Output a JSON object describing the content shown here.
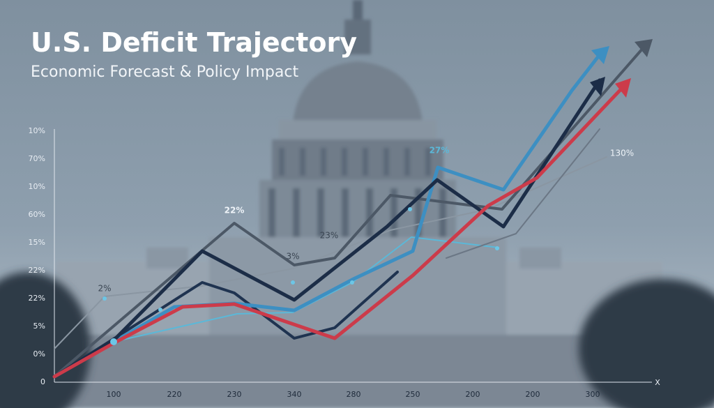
{
  "header": {
    "title": "U.S. Deficit Trajectory",
    "subtitle": "Economic Forecast & Policy Impact"
  },
  "axis": {
    "y_labels": [
      "10%",
      "70%",
      "10%",
      "60%",
      "15%",
      "22%",
      "22%",
      "5%",
      "0%",
      "0"
    ],
    "x_labels": [
      "100",
      "220",
      "230",
      "340",
      "280",
      "250",
      "200",
      "200",
      "300"
    ],
    "x_end": "X"
  },
  "annotations": [
    "27%",
    "130%",
    "22%",
    "23%",
    "2%",
    "3%"
  ]
}
